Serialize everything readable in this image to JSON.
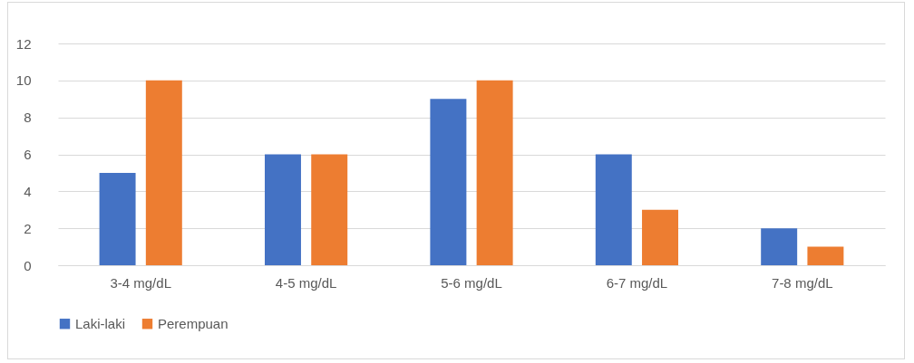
{
  "chart_data": {
    "type": "bar",
    "categories": [
      "3-4 mg/dL",
      "4-5 mg/dL",
      "5-6 mg/dL",
      "6-7 mg/dL",
      "7-8 mg/dL"
    ],
    "series": [
      {
        "name": "Laki-laki",
        "color": "#4472c4",
        "values": [
          5,
          6,
          9,
          6,
          2
        ]
      },
      {
        "name": "Perempuan",
        "color": "#ed7d31",
        "values": [
          10,
          6,
          10,
          3,
          1
        ]
      }
    ],
    "ylim": [
      0,
      12
    ],
    "yticks": [
      0,
      2,
      4,
      6,
      8,
      10,
      12
    ],
    "grid": "y",
    "legend": "bottom"
  }
}
